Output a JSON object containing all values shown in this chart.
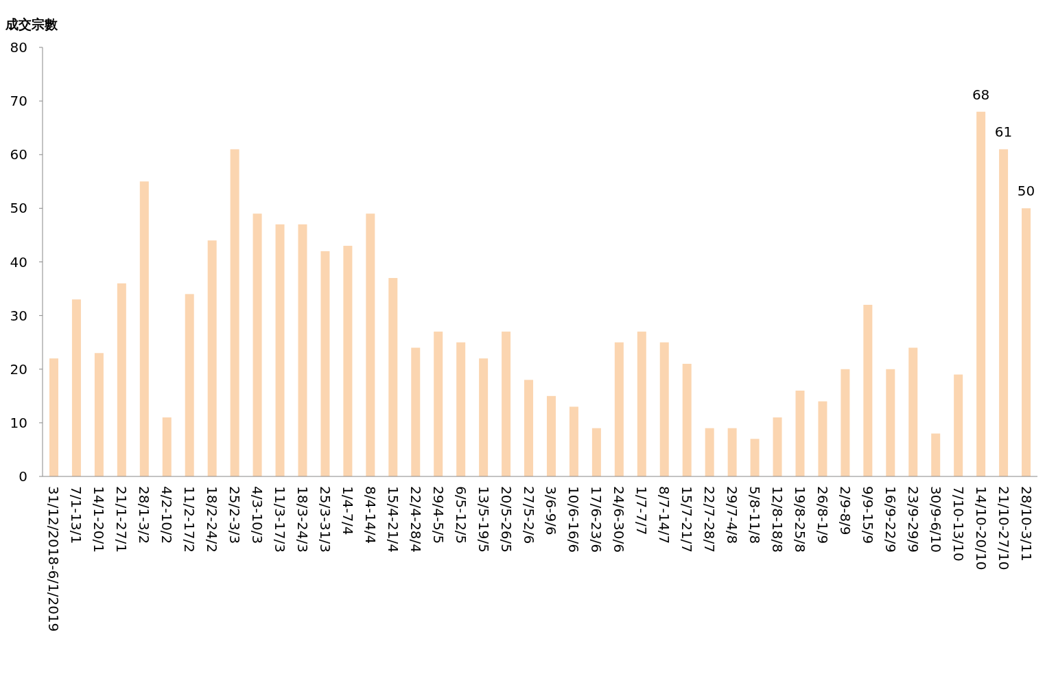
{
  "chart_data": {
    "type": "bar",
    "ylabel": "成交宗數",
    "categories": [
      "31/12/2018-6/1/2019",
      "7/1-13/1",
      "14/1-20/1",
      "21/1-27/1",
      "28/1-3/2",
      "4/2-10/2",
      "11/2-17/2",
      "18/2-24/2",
      "25/2-3/3",
      "4/3-10/3",
      "11/3-17/3",
      "18/3-24/3",
      "25/3-31/3",
      "1/4-7/4",
      "8/4-14/4",
      "15/4-21/4",
      "22/4-28/4",
      "29/4-5/5",
      "6/5-12/5",
      "13/5-19/5",
      "20/5-26/5",
      "27/5-2/6",
      "3/6-9/6",
      "10/6-16/6",
      "17/6-23/6",
      "24/6-30/6",
      "1/7-7/7",
      "8/7-14/7",
      "15/7-21/7",
      "22/7-28/7",
      "29/7-4/8",
      "5/8-11/8",
      "12/8-18/8",
      "19/8-25/8",
      "26/8-1/9",
      "2/9-8/9",
      "9/9-15/9",
      "16/9-22/9",
      "23/9-29/9",
      "30/9-6/10",
      "7/10-13/10",
      "14/10-20/10",
      "21/10-27/10",
      "28/10-3/11"
    ],
    "values": [
      22,
      33,
      23,
      36,
      55,
      11,
      34,
      44,
      61,
      49,
      47,
      47,
      42,
      43,
      49,
      37,
      24,
      27,
      25,
      22,
      27,
      18,
      15,
      13,
      9,
      25,
      27,
      25,
      21,
      9,
      9,
      7,
      11,
      16,
      14,
      20,
      32,
      20,
      24,
      8,
      19,
      68,
      61,
      50
    ],
    "value_labels": [
      null,
      null,
      null,
      null,
      null,
      null,
      null,
      null,
      null,
      null,
      null,
      null,
      null,
      null,
      null,
      null,
      null,
      null,
      null,
      null,
      null,
      null,
      null,
      null,
      null,
      null,
      null,
      null,
      null,
      null,
      null,
      null,
      null,
      null,
      null,
      null,
      null,
      null,
      null,
      null,
      null,
      "68",
      "61",
      "50"
    ],
    "color": "#fbd5b0",
    "ylim": [
      0,
      80
    ],
    "yticks": [
      0,
      10,
      20,
      30,
      40,
      50,
      60,
      70,
      80
    ]
  }
}
